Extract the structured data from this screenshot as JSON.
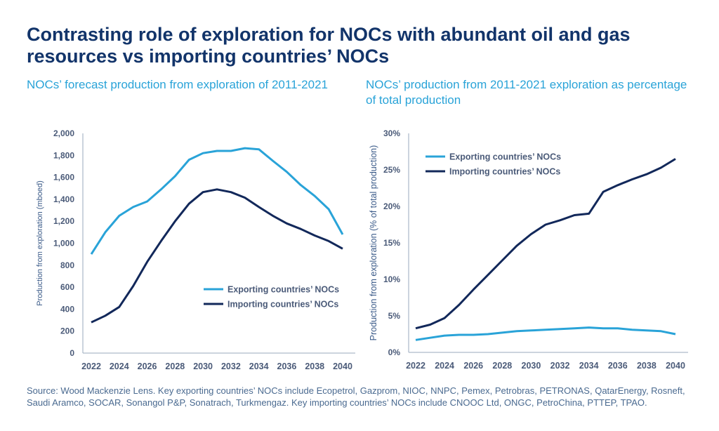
{
  "title": "Contrasting role of exploration for NOCs with abundant oil and gas resources vs importing countries’ NOCs",
  "footer": "Source: Wood Mackenzie Lens. Key exporting countries’ NOCs include Ecopetrol, Gazprom, NIOC, NNPC, Pemex, Petrobras, PETRONAS, QatarEnergy, Rosneft, Saudi Aramco, SOCAR, Sonangol P&P, Sonatrach, Turkmengaz. Key importing countries’ NOCs include CNOOC Ltd, ONGC, PetroChina, PTTEP, TPAO.",
  "colors": {
    "exporting": "#29a3d8",
    "importing": "#12285a",
    "axis": "#4a5a78"
  },
  "chart_data": [
    {
      "type": "line",
      "title": "NOCs’ forecast production from exploration of 2011-2021",
      "ylabel": "Production from exploration (mboed)",
      "xlabel": "",
      "ylim": [
        0,
        2000
      ],
      "yticks": [
        "0",
        "200",
        "400",
        "600",
        "800",
        "1,000",
        "1,200",
        "1,400",
        "1,600",
        "1,800",
        "2,000"
      ],
      "xticks": [
        "2022",
        "2024",
        "2026",
        "2028",
        "2030",
        "2032",
        "2034",
        "2036",
        "2038",
        "2040"
      ],
      "legend": "center-right",
      "x": [
        2022,
        2023,
        2024,
        2025,
        2026,
        2027,
        2028,
        2029,
        2030,
        2031,
        2032,
        2033,
        2034,
        2035,
        2036,
        2037,
        2038,
        2039,
        2040
      ],
      "series": [
        {
          "name": "Exporting countries’ NOCs",
          "values": [
            900,
            1100,
            1250,
            1330,
            1380,
            1490,
            1610,
            1760,
            1820,
            1840,
            1840,
            1865,
            1855,
            1750,
            1650,
            1530,
            1430,
            1310,
            1080
          ]
        },
        {
          "name": "Importing countries’ NOCs",
          "values": [
            280,
            340,
            420,
            610,
            830,
            1020,
            1200,
            1360,
            1465,
            1490,
            1465,
            1415,
            1330,
            1250,
            1180,
            1130,
            1070,
            1020,
            950
          ]
        }
      ]
    },
    {
      "type": "line",
      "title": "NOCs’ production from 2011-2021 exploration as percentage of total production",
      "ylabel": "Production from exploration (% of total production)",
      "xlabel": "",
      "ylim": [
        0,
        30
      ],
      "yticks": [
        "0%",
        "5%",
        "10%",
        "15%",
        "20%",
        "25%",
        "30%"
      ],
      "xticks": [
        "2022",
        "2024",
        "2026",
        "2028",
        "2030",
        "2032",
        "2034",
        "2036",
        "2038",
        "2040"
      ],
      "legend": "top-left",
      "x": [
        2022,
        2023,
        2024,
        2025,
        2026,
        2027,
        2028,
        2029,
        2030,
        2031,
        2032,
        2033,
        2034,
        2035,
        2036,
        2037,
        2038,
        2039,
        2040
      ],
      "series": [
        {
          "name": "Exporting countries’ NOCs",
          "values": [
            1.7,
            2.0,
            2.3,
            2.4,
            2.4,
            2.5,
            2.7,
            2.9,
            3.0,
            3.1,
            3.2,
            3.3,
            3.4,
            3.3,
            3.3,
            3.1,
            3.0,
            2.9,
            2.5
          ]
        },
        {
          "name": "Importing countries’ NOCs",
          "values": [
            3.3,
            3.8,
            4.7,
            6.5,
            8.6,
            10.6,
            12.6,
            14.6,
            16.2,
            17.5,
            18.1,
            18.8,
            19.0,
            22.0,
            22.9,
            23.7,
            24.4,
            25.3,
            26.5
          ]
        }
      ]
    }
  ]
}
